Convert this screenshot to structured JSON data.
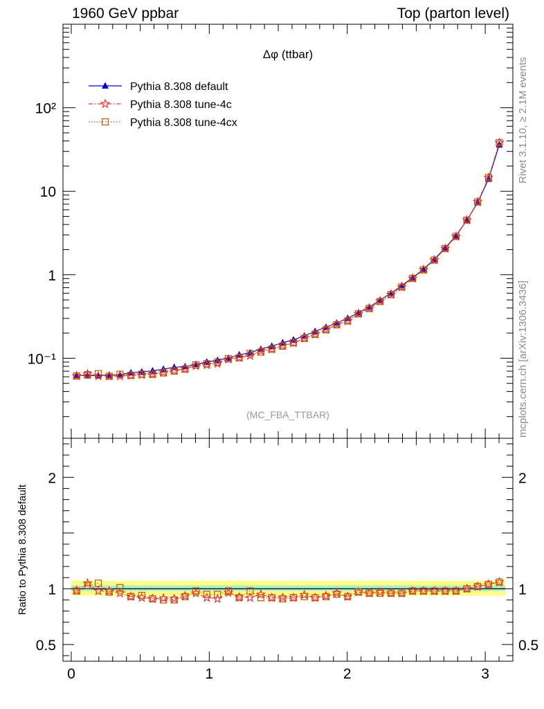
{
  "header": {
    "left": "1960 GeV ppbar",
    "right": "Top (parton level)"
  },
  "side_labels": {
    "rivet": "Rivet 3.1.10, ≥ 2.1M events",
    "mcplots": "mcplots.cern.ch [arXiv:1306.3436]"
  },
  "chart_data": [
    {
      "type": "line",
      "title": "Δφ (ttbar)",
      "watermark": "(MC_FBA_TTBAR)",
      "yscale": "log",
      "xlim": [
        -0.06,
        3.2
      ],
      "ylim": [
        0.011,
        1000
      ],
      "yticklabels": [
        "10⁻¹",
        "1",
        "10",
        "10²"
      ],
      "ytickvalues": [
        0.1,
        1,
        10,
        100
      ],
      "legend_position": "top-left",
      "x": [
        0.039,
        0.118,
        0.196,
        0.275,
        0.353,
        0.432,
        0.511,
        0.589,
        0.668,
        0.746,
        0.825,
        0.903,
        0.982,
        1.06,
        1.139,
        1.217,
        1.296,
        1.374,
        1.453,
        1.532,
        1.61,
        1.689,
        1.767,
        1.846,
        1.924,
        2.003,
        2.081,
        2.16,
        2.238,
        2.317,
        2.395,
        2.474,
        2.553,
        2.631,
        2.71,
        2.788,
        2.867,
        2.945,
        3.024,
        3.102
      ],
      "series": [
        {
          "name": "Pythia 8.308 default",
          "color": "#0000cc",
          "marker": "triangle",
          "line": "solid",
          "values": [
            0.0625,
            0.0617,
            0.0622,
            0.0626,
            0.0636,
            0.0671,
            0.0686,
            0.0707,
            0.0741,
            0.078,
            0.0795,
            0.0846,
            0.0902,
            0.0947,
            0.1005,
            0.1101,
            0.1164,
            0.1287,
            0.1397,
            0.1536,
            0.1662,
            0.1855,
            0.2097,
            0.2355,
            0.2647,
            0.301,
            0.3516,
            0.4111,
            0.4984,
            0.6025,
            0.7424,
            0.9235,
            1.17,
            1.53,
            2.1,
            2.93,
            4.5,
            7.3,
            14.0,
            36.0
          ]
        },
        {
          "name": "Pythia 8.308 tune-4c",
          "color": "#ee3333",
          "marker": "star",
          "line": "dashdot",
          "values": [
            0.0615,
            0.0648,
            0.061,
            0.0613,
            0.0611,
            0.0623,
            0.0631,
            0.0644,
            0.0679,
            0.0709,
            0.0745,
            0.0812,
            0.0831,
            0.0863,
            0.097,
            0.1017,
            0.107,
            0.1224,
            0.1285,
            0.1413,
            0.1526,
            0.1749,
            0.1926,
            0.2204,
            0.2535,
            0.2798,
            0.341,
            0.3947,
            0.4834,
            0.5785,
            0.7127,
            0.905,
            1.1466,
            1.4994,
            2.058,
            2.8714,
            4.5,
            7.446,
            14.56,
            38.16
          ]
        },
        {
          "name": "Pythia 8.308 tune-4cx",
          "color": "#bb5500",
          "marker": "square",
          "line": "dotted",
          "values": [
            0.0612,
            0.0636,
            0.0653,
            0.0608,
            0.0643,
            0.0624,
            0.0645,
            0.0643,
            0.0667,
            0.0702,
            0.0741,
            0.083,
            0.0859,
            0.09,
            0.0985,
            0.1012,
            0.1141,
            0.1184,
            0.1285,
            0.1398,
            0.1529,
            0.1726,
            0.1938,
            0.219,
            0.2515,
            0.2799,
            0.3405,
            0.3943,
            0.4784,
            0.5785,
            0.7127,
            0.905,
            1.1466,
            1.4994,
            2.058,
            2.8714,
            4.5,
            7.446,
            14.56,
            38.16
          ]
        }
      ]
    },
    {
      "type": "line",
      "ylabel": "Ratio to Pythia 8.308 default",
      "xlim": [
        -0.06,
        3.2
      ],
      "ylim": [
        0.35,
        2.35
      ],
      "xticklabels": [
        "0",
        "1",
        "2",
        "3"
      ],
      "xtickvalues": [
        0,
        1,
        2,
        3
      ],
      "yticklabels": [
        "0.5",
        "1",
        "2"
      ],
      "ytickvalues": [
        0.5,
        1,
        2
      ],
      "bands": [
        {
          "color": "#ffff80",
          "low": 0.94,
          "high": 1.07
        },
        {
          "color": "#aaeecc",
          "low": 0.98,
          "high": 1.03
        }
      ],
      "series": [
        {
          "name": "Pythia 8.308 tune-4c",
          "color": "#ee3333",
          "marker": "star",
          "values": [
            0.985,
            1.05,
            0.98,
            0.98,
            0.96,
            0.93,
            0.92,
            0.91,
            0.915,
            0.91,
            0.935,
            0.96,
            0.92,
            0.91,
            0.965,
            0.925,
            0.92,
            0.95,
            0.92,
            0.92,
            0.92,
            0.945,
            0.92,
            0.935,
            0.96,
            0.93,
            0.97,
            0.96,
            0.97,
            0.96,
            0.96,
            0.98,
            0.98,
            0.98,
            0.98,
            0.98,
            1.0,
            1.02,
            1.04,
            1.06
          ]
        },
        {
          "name": "Pythia 8.308 tune-4cx",
          "color": "#bb5500",
          "marker": "square",
          "values": [
            0.98,
            1.03,
            1.05,
            0.97,
            1.01,
            0.93,
            0.94,
            0.91,
            0.9,
            0.9,
            0.93,
            0.98,
            0.95,
            0.95,
            0.98,
            0.92,
            0.98,
            0.92,
            0.92,
            0.91,
            0.92,
            0.93,
            0.92,
            0.93,
            0.95,
            0.93,
            0.97,
            0.96,
            0.96,
            0.96,
            0.96,
            0.98,
            0.98,
            0.98,
            0.98,
            0.98,
            1.0,
            1.02,
            1.04,
            1.06
          ]
        }
      ]
    }
  ]
}
